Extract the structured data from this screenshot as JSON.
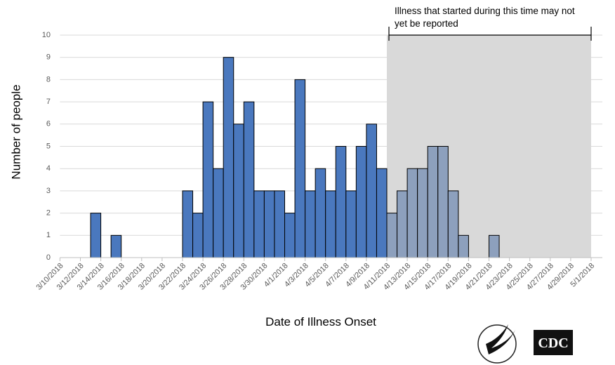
{
  "chart_data": {
    "type": "bar",
    "y_label": "Number of people",
    "x_label": "Date of Illness Onset",
    "annotation": [
      "Illness that started during this time may not",
      "yet be reported"
    ],
    "shade_start": "4/11/2018",
    "shade_end": "5/1/2018",
    "categories": [
      "3/10/2018",
      null,
      "3/12/2018",
      null,
      "3/14/2018",
      null,
      "3/16/2018",
      null,
      "3/18/2018",
      null,
      "3/20/2018",
      null,
      "3/22/2018",
      null,
      "3/24/2018",
      null,
      "3/26/2018",
      null,
      "3/28/2018",
      null,
      "3/30/2018",
      null,
      "4/1/2018",
      null,
      "4/3/2018",
      null,
      "4/5/2018",
      null,
      "4/7/2018",
      null,
      "4/9/2018",
      null,
      "4/11/2018",
      null,
      "4/13/2018",
      null,
      "4/15/2018",
      null,
      "4/17/2018",
      null,
      "4/19/2018",
      null,
      "4/21/2018",
      null,
      "4/23/2018",
      null,
      "4/25/2018",
      null,
      "4/27/2018",
      null,
      "4/29/2018",
      null,
      "5/1/2018"
    ],
    "values": [
      0,
      0,
      0,
      2,
      0,
      1,
      0,
      0,
      0,
      0,
      0,
      0,
      3,
      2,
      7,
      4,
      9,
      6,
      7,
      3,
      3,
      3,
      2,
      8,
      3,
      4,
      3,
      5,
      3,
      5,
      6,
      4,
      2,
      3,
      4,
      4,
      5,
      5,
      3,
      1,
      0,
      0,
      1,
      0,
      0,
      0,
      0,
      0,
      0,
      0,
      0,
      0,
      0
    ],
    "color": "#4a78be",
    "shaded_color": "#8da0bd",
    "shade_color": "#d9d9d9",
    "ylim": [
      0,
      10
    ],
    "yticks": [
      0,
      1,
      2,
      3,
      4,
      5,
      6,
      7,
      8,
      9,
      10
    ],
    "grid": true,
    "logo_text": "CDC"
  }
}
